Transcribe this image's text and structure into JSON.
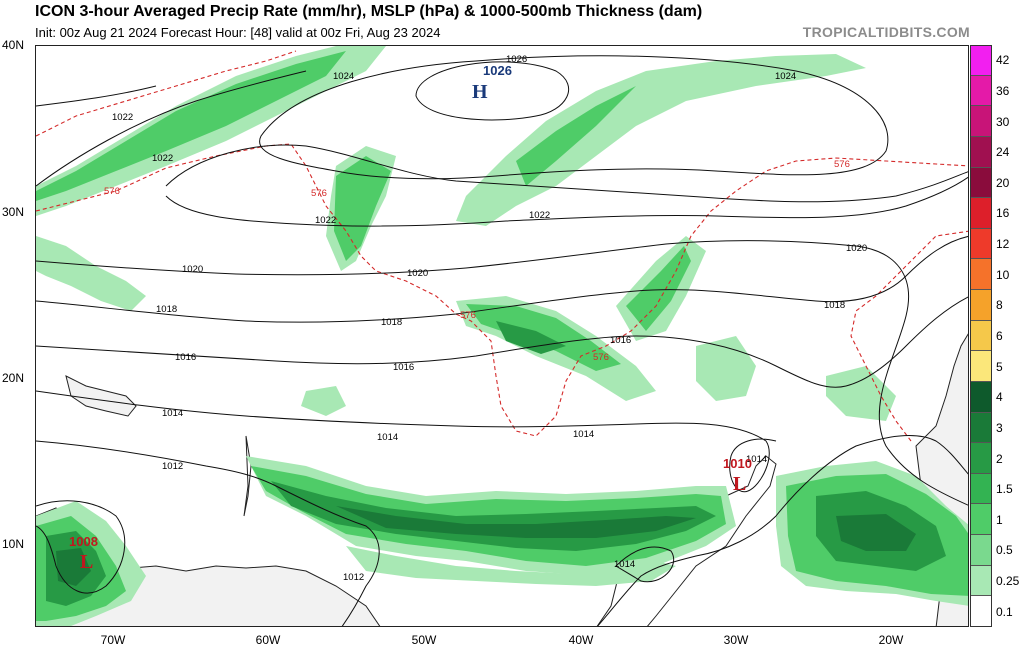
{
  "header": {
    "title": "ICON 3-hour Averaged Precip Rate (mm/hr), MSLP (hPa) & 1000-500mb Thickness (dam)",
    "subtitle": "Init: 00z Aug 21 2024   Forecast Hour: [48]   valid at 00z Fri, Aug 23 2024",
    "watermark": "TROPICALTIDBITS.COM"
  },
  "axes": {
    "lat_labels": [
      "40N",
      "30N",
      "20N",
      "10N"
    ],
    "lon_labels": [
      "70W",
      "60W",
      "50W",
      "40W",
      "30W",
      "20W"
    ]
  },
  "colorbar": {
    "labels": [
      "42",
      "36",
      "30",
      "24",
      "20",
      "16",
      "12",
      "10",
      "8",
      "6",
      "5",
      "4",
      "3",
      "2",
      "1.5",
      "1",
      "0.5",
      "0.25",
      "0.1"
    ],
    "colors": [
      "#f21ff0",
      "#e41aa8",
      "#c81478",
      "#a01050",
      "#8a0c3c",
      "#dd1f2a",
      "#ee3a2a",
      "#f5722a",
      "#f5a22a",
      "#f5c84a",
      "#fbe77a",
      "#0e5a2c",
      "#1a7a38",
      "#279a45",
      "#33b352",
      "#4fcc68",
      "#7ad98e",
      "#a8e8b4",
      "#ffffff"
    ]
  },
  "pressure_systems": [
    {
      "type": "H",
      "value": "1026",
      "color": "#1a3a7a"
    },
    {
      "type": "L",
      "value": "1010",
      "color": "#c0181f"
    },
    {
      "type": "L",
      "value": "1008",
      "color": "#c0181f"
    }
  ],
  "isobar_labels": [
    "1026",
    "1024",
    "1024",
    "1022",
    "1022",
    "1022",
    "1022",
    "1020",
    "1020",
    "1020",
    "1018",
    "1018",
    "1018",
    "1016",
    "1016",
    "1016",
    "1014",
    "1014",
    "1014",
    "1014",
    "1012",
    "1012",
    "1014"
  ],
  "thickness_labels": [
    "576",
    "576",
    "576",
    "576",
    "576"
  ],
  "colors": {
    "precip_light": "#4fcc68",
    "precip_mid": "#279a45",
    "precip_dark": "#1a7a38",
    "thickness": "#d42a2a",
    "isobar": "#111111"
  }
}
